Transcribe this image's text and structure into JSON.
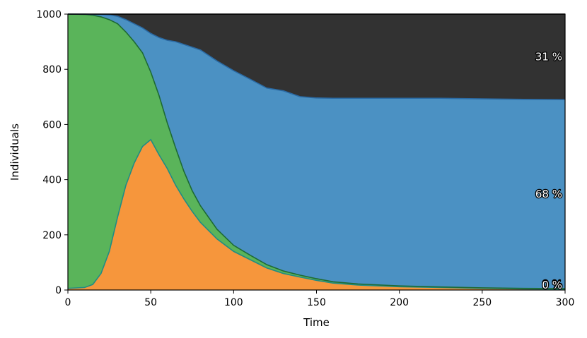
{
  "chart_data": {
    "type": "area",
    "stacked": true,
    "title": "",
    "xlabel": "Time",
    "ylabel": "Individuals",
    "xlim": [
      0,
      300
    ],
    "ylim": [
      0,
      1000
    ],
    "x_ticks": [
      "0",
      "50",
      "100",
      "150",
      "200",
      "250",
      "300"
    ],
    "y_ticks": [
      "0",
      "200",
      "400",
      "600",
      "800",
      "1000"
    ],
    "grid": false,
    "legend": "none",
    "x": [
      0,
      10,
      15,
      20,
      25,
      30,
      35,
      40,
      45,
      50,
      55,
      60,
      65,
      70,
      75,
      80,
      90,
      100,
      110,
      120,
      130,
      140,
      150,
      160,
      175,
      200,
      225,
      250,
      275,
      300
    ],
    "series": [
      {
        "color": "#f6963c",
        "values": [
          6,
          9,
          20,
          60,
          140,
          265,
          380,
          460,
          520,
          545,
          490,
          440,
          380,
          330,
          285,
          245,
          185,
          140,
          110,
          80,
          60,
          47,
          35,
          25,
          18,
          12,
          9,
          6,
          4,
          3
        ]
      },
      {
        "color": "#5ab45a",
        "values": [
          994,
          990,
          976,
          930,
          840,
          700,
          555,
          440,
          340,
          245,
          215,
          165,
          135,
          100,
          75,
          60,
          35,
          22,
          16,
          12,
          9,
          7,
          6,
          5,
          4,
          3,
          2,
          2,
          2,
          2
        ]
      },
      {
        "color": "#4b91c3",
        "values": [
          0,
          1,
          3,
          9,
          17,
          27,
          45,
          65,
          90,
          140,
          210,
          300,
          385,
          460,
          520,
          565,
          610,
          633,
          638,
          640,
          653,
          647,
          655,
          665,
          673,
          680,
          684,
          685,
          685,
          685
        ]
      },
      {
        "color": "#323232",
        "values": [
          0,
          0,
          1,
          1,
          3,
          8,
          20,
          35,
          50,
          70,
          85,
          95,
          100,
          110,
          120,
          130,
          170,
          205,
          236,
          268,
          278,
          299,
          304,
          305,
          305,
          305,
          305,
          307,
          309,
          310
        ]
      }
    ],
    "end_labels": [
      {
        "series": 3,
        "text": "31 %"
      },
      {
        "series": 2,
        "text": "68 %"
      },
      {
        "series": 1,
        "text": "0 %"
      },
      {
        "series": 0,
        "text": "0 %"
      }
    ],
    "boundary_colors": [
      "#208c84",
      "#1e6a34",
      "#2a6aa4",
      "#000000"
    ]
  }
}
